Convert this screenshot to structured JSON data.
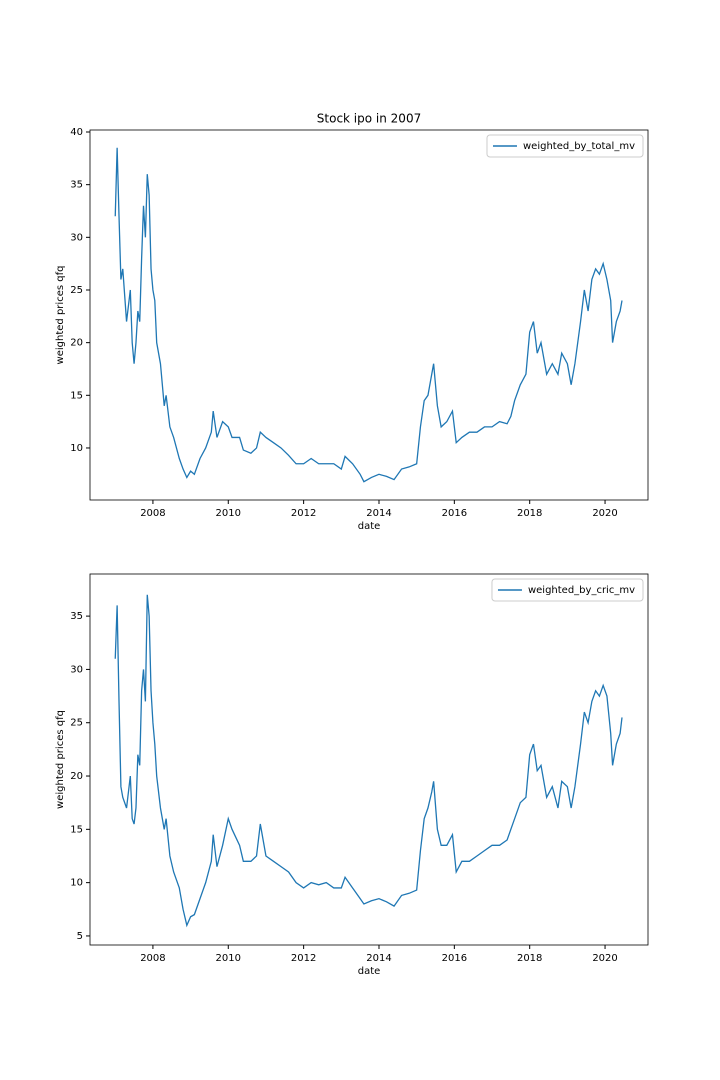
{
  "chart_data": [
    {
      "type": "line",
      "title": "Stock ipo in 2007",
      "x_label": "date",
      "y_label": "weighted prices qfq",
      "legend": "upper right",
      "xlim": [
        2006.33,
        2021.14
      ],
      "xticks": [
        2008,
        2010,
        2012,
        2014,
        2016,
        2018,
        2020
      ],
      "ylim": [
        5.06,
        40.19
      ],
      "yticks": [
        10,
        15,
        20,
        25,
        30,
        35,
        40
      ],
      "x": [
        2007.0,
        2007.05,
        2007.1,
        2007.15,
        2007.2,
        2007.3,
        2007.4,
        2007.45,
        2007.5,
        2007.55,
        2007.6,
        2007.65,
        2007.7,
        2007.75,
        2007.8,
        2007.85,
        2007.9,
        2007.95,
        2008.0,
        2008.05,
        2008.1,
        2008.2,
        2008.3,
        2008.35,
        2008.45,
        2008.55,
        2008.7,
        2008.8,
        2008.9,
        2009.0,
        2009.1,
        2009.25,
        2009.4,
        2009.55,
        2009.6,
        2009.7,
        2009.85,
        2010.0,
        2010.1,
        2010.3,
        2010.4,
        2010.6,
        2010.75,
        2010.85,
        2011.0,
        2011.2,
        2011.4,
        2011.6,
        2011.8,
        2012.0,
        2012.2,
        2012.4,
        2012.6,
        2012.8,
        2013.0,
        2013.1,
        2013.3,
        2013.5,
        2013.6,
        2013.8,
        2014.0,
        2014.2,
        2014.4,
        2014.6,
        2014.8,
        2015.0,
        2015.1,
        2015.2,
        2015.3,
        2015.4,
        2015.45,
        2015.55,
        2015.65,
        2015.8,
        2015.95,
        2016.05,
        2016.2,
        2016.4,
        2016.6,
        2016.8,
        2017.0,
        2017.2,
        2017.4,
        2017.5,
        2017.6,
        2017.75,
        2017.9,
        2018.0,
        2018.1,
        2018.2,
        2018.3,
        2018.45,
        2018.6,
        2018.75,
        2018.85,
        2019.0,
        2019.1,
        2019.2,
        2019.35,
        2019.45,
        2019.55,
        2019.65,
        2019.75,
        2019.85,
        2019.95,
        2020.05,
        2020.15,
        2020.2,
        2020.3,
        2020.4,
        2020.45
      ],
      "series": [
        {
          "name": "weighted_by_total_mv",
          "color": "#1f77b4",
          "values": [
            32,
            38.5,
            32,
            26,
            27,
            22,
            25,
            20,
            18,
            20,
            23,
            22,
            28,
            33,
            30,
            36,
            34,
            27,
            25,
            24,
            20,
            18,
            14,
            15,
            12,
            11,
            9,
            8,
            7.2,
            7.8,
            7.5,
            9,
            10,
            11.5,
            13.5,
            11,
            12.5,
            12,
            11,
            11,
            9.8,
            9.5,
            10,
            11.5,
            11,
            10.5,
            10,
            9.3,
            8.5,
            8.5,
            9,
            8.5,
            8.5,
            8.5,
            8,
            9.2,
            8.5,
            7.5,
            6.8,
            7.2,
            7.5,
            7.3,
            7.0,
            8,
            8.2,
            8.5,
            12,
            14.5,
            15,
            17,
            18,
            14,
            12,
            12.5,
            13.5,
            10.5,
            11,
            11.5,
            11.5,
            12,
            12,
            12.5,
            12.3,
            13,
            14.5,
            16,
            17,
            21,
            22,
            19,
            20,
            17,
            18,
            17,
            19,
            18,
            16,
            18,
            22,
            25,
            23,
            26,
            27,
            26.5,
            27.5,
            26,
            24,
            20,
            22,
            23,
            24
          ]
        }
      ]
    },
    {
      "type": "line",
      "x_label": "date",
      "y_label": "weighted prices qfq",
      "legend": "upper right",
      "xlim": [
        2006.33,
        2021.14
      ],
      "xticks": [
        2008,
        2010,
        2012,
        2014,
        2016,
        2018,
        2020
      ],
      "ylim": [
        4.15,
        38.95
      ],
      "yticks": [
        5,
        10,
        15,
        20,
        25,
        30,
        35
      ],
      "x": [
        2007.0,
        2007.05,
        2007.1,
        2007.15,
        2007.2,
        2007.3,
        2007.4,
        2007.45,
        2007.5,
        2007.55,
        2007.6,
        2007.65,
        2007.7,
        2007.75,
        2007.8,
        2007.85,
        2007.9,
        2007.95,
        2008.0,
        2008.05,
        2008.1,
        2008.2,
        2008.3,
        2008.35,
        2008.45,
        2008.55,
        2008.7,
        2008.8,
        2008.9,
        2009.0,
        2009.1,
        2009.25,
        2009.4,
        2009.55,
        2009.6,
        2009.7,
        2009.85,
        2010.0,
        2010.1,
        2010.3,
        2010.4,
        2010.6,
        2010.75,
        2010.85,
        2011.0,
        2011.2,
        2011.4,
        2011.6,
        2011.8,
        2012.0,
        2012.2,
        2012.4,
        2012.6,
        2012.8,
        2013.0,
        2013.1,
        2013.3,
        2013.5,
        2013.6,
        2013.8,
        2014.0,
        2014.2,
        2014.4,
        2014.6,
        2014.8,
        2015.0,
        2015.1,
        2015.2,
        2015.3,
        2015.4,
        2015.45,
        2015.55,
        2015.65,
        2015.8,
        2015.95,
        2016.05,
        2016.2,
        2016.4,
        2016.6,
        2016.8,
        2017.0,
        2017.2,
        2017.4,
        2017.5,
        2017.6,
        2017.75,
        2017.9,
        2018.0,
        2018.1,
        2018.2,
        2018.3,
        2018.45,
        2018.6,
        2018.75,
        2018.85,
        2019.0,
        2019.1,
        2019.2,
        2019.35,
        2019.45,
        2019.55,
        2019.65,
        2019.75,
        2019.85,
        2019.95,
        2020.05,
        2020.15,
        2020.2,
        2020.3,
        2020.4,
        2020.45
      ],
      "series": [
        {
          "name": "weighted_by_cric_mv",
          "color": "#1f77b4",
          "values": [
            31,
            36,
            27,
            19,
            18,
            17,
            20,
            16,
            15.5,
            17,
            22,
            21,
            28,
            30,
            27,
            37,
            35,
            28,
            25,
            23,
            20,
            17,
            15,
            16,
            12.5,
            11,
            9.5,
            7.5,
            6,
            6.8,
            7,
            8.5,
            10,
            12,
            14.5,
            11.5,
            13.5,
            16,
            15,
            13.5,
            12,
            12,
            12.5,
            15.5,
            12.5,
            12,
            11.5,
            11,
            10,
            9.5,
            10,
            9.8,
            10,
            9.5,
            9.5,
            10.5,
            9.5,
            8.5,
            8,
            8.3,
            8.5,
            8.2,
            7.8,
            8.8,
            9,
            9.3,
            13,
            16,
            17,
            18.5,
            19.5,
            15,
            13.5,
            13.5,
            14.5,
            11,
            12,
            12,
            12.5,
            13,
            13.5,
            13.5,
            14,
            15,
            16,
            17.5,
            18,
            22,
            23,
            20.5,
            21,
            18,
            19,
            17,
            19.5,
            19,
            17,
            19,
            23,
            26,
            25,
            27,
            28,
            27.5,
            28.5,
            27.5,
            24,
            21,
            23,
            24,
            25.5
          ]
        }
      ]
    }
  ]
}
